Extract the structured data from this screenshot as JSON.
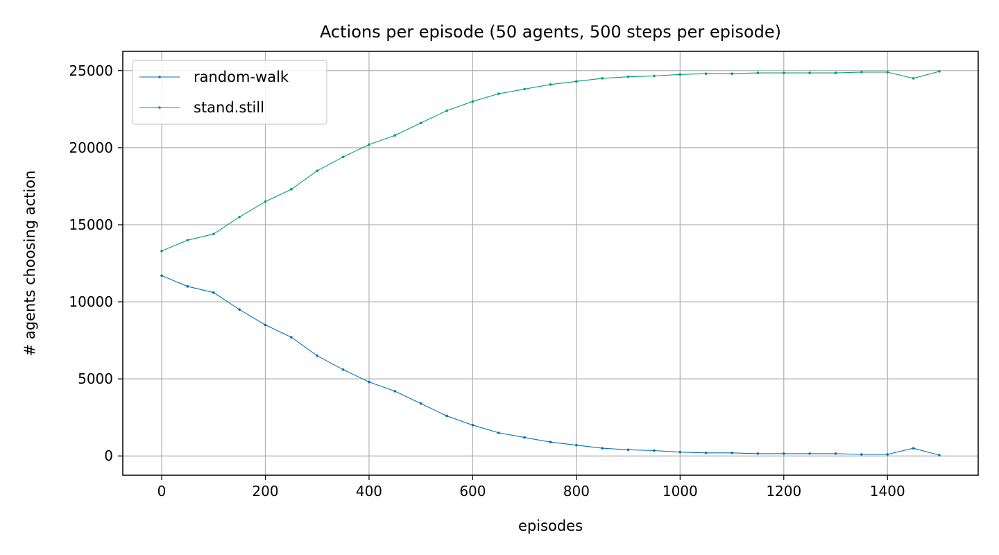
{
  "chart_data": {
    "type": "line",
    "title": "Actions per episode (50 agents, 500 steps per episode)",
    "xlabel": "episodes",
    "ylabel": "# agents choosing action",
    "xlim": [
      -75,
      1575
    ],
    "ylim": [
      -1250,
      26250
    ],
    "xticks": [
      0,
      200,
      400,
      600,
      800,
      1000,
      1200,
      1400
    ],
    "yticks": [
      0,
      5000,
      10000,
      15000,
      20000,
      25000
    ],
    "grid": true,
    "legend_position": "upper-left",
    "series": [
      {
        "name": "random-walk",
        "color": "#0072b2",
        "x": [
          0,
          50,
          100,
          150,
          200,
          250,
          300,
          350,
          400,
          450,
          500,
          550,
          600,
          650,
          700,
          750,
          800,
          850,
          900,
          950,
          1000,
          1050,
          1100,
          1150,
          1200,
          1250,
          1300,
          1350,
          1400,
          1450,
          1500
        ],
        "values": [
          11700,
          11000,
          10600,
          9500,
          8500,
          7700,
          6500,
          5600,
          4800,
          4200,
          3400,
          2600,
          2000,
          1500,
          1200,
          900,
          700,
          500,
          400,
          350,
          250,
          200,
          200,
          150,
          150,
          150,
          150,
          100,
          100,
          500,
          50
        ]
      },
      {
        "name": "stand.still",
        "color": "#009e73",
        "x": [
          0,
          50,
          100,
          150,
          200,
          250,
          300,
          350,
          400,
          450,
          500,
          550,
          600,
          650,
          700,
          750,
          800,
          850,
          900,
          950,
          1000,
          1050,
          1100,
          1150,
          1200,
          1250,
          1300,
          1350,
          1400,
          1450,
          1500
        ],
        "values": [
          13300,
          14000,
          14400,
          15500,
          16500,
          17300,
          18500,
          19400,
          20200,
          20800,
          21600,
          22400,
          23000,
          23500,
          23800,
          24100,
          24300,
          24500,
          24600,
          24650,
          24750,
          24800,
          24800,
          24850,
          24850,
          24850,
          24850,
          24900,
          24900,
          24500,
          24950
        ]
      }
    ]
  }
}
